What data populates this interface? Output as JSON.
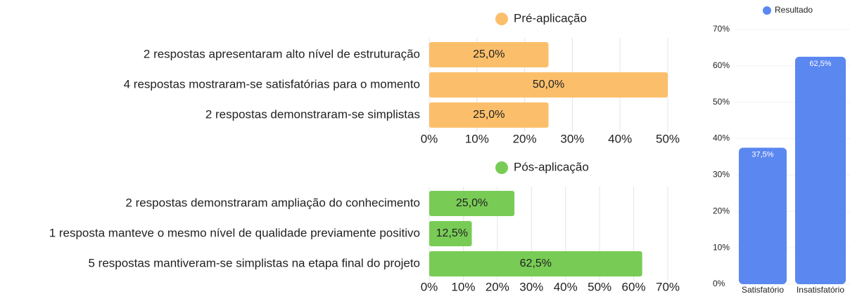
{
  "chart_data": [
    {
      "type": "hbar",
      "categories": [
        "2 respostas apresentaram alto nível de estruturação",
        "4 respostas mostraram-se satisfatórias para o momento",
        "2 respostas demonstraram-se simplistas"
      ],
      "series": [
        {
          "name": "Pré-aplicação",
          "color": "#fbbf6b",
          "values": [
            25,
            50,
            25
          ],
          "value_labels": [
            "25,0%",
            "50,0%",
            "25,0%"
          ]
        }
      ],
      "xlim": [
        0,
        50
      ],
      "xticks": [
        {
          "value": 0,
          "label": "0%"
        },
        {
          "value": 10,
          "label": "10%"
        },
        {
          "value": 20,
          "label": "20%"
        },
        {
          "value": 30,
          "label": "30%"
        },
        {
          "value": 40,
          "label": "40%"
        },
        {
          "value": 50,
          "label": "50%"
        }
      ],
      "grid": true
    },
    {
      "type": "hbar",
      "categories": [
        "2 respostas demonstraram ampliação do conhecimento",
        "1 resposta manteve o mesmo nível de qualidade previamente positivo",
        "5 respostas mantiveram-se simplistas na etapa final do projeto"
      ],
      "series": [
        {
          "name": "Pós-aplicação",
          "color": "#78cc55",
          "values": [
            25,
            12.5,
            62.5
          ],
          "value_labels": [
            "25,0%",
            "12,5%",
            "62,5%"
          ]
        }
      ],
      "xlim": [
        0,
        70
      ],
      "xticks": [
        {
          "value": 0,
          "label": "0%"
        },
        {
          "value": 10,
          "label": "10%"
        },
        {
          "value": 20,
          "label": "20%"
        },
        {
          "value": 30,
          "label": "30%"
        },
        {
          "value": 40,
          "label": "40%"
        },
        {
          "value": 50,
          "label": "50%"
        },
        {
          "value": 60,
          "label": "60%"
        },
        {
          "value": 70,
          "label": "70%"
        }
      ],
      "grid": true
    },
    {
      "type": "bar",
      "categories": [
        "Satisfatório",
        "Insatisfatório"
      ],
      "series": [
        {
          "name": "Resultado",
          "color": "#5b87f0",
          "values": [
            37.5,
            62.5
          ],
          "value_labels": [
            "37,5%",
            "62,5%"
          ]
        }
      ],
      "ylim": [
        0,
        70
      ],
      "yticks": [
        {
          "value": 0,
          "label": "0%"
        },
        {
          "value": 10,
          "label": "10%"
        },
        {
          "value": 20,
          "label": "20%"
        },
        {
          "value": 30,
          "label": "30%"
        },
        {
          "value": 40,
          "label": "40%"
        },
        {
          "value": 50,
          "label": "50%"
        },
        {
          "value": 60,
          "label": "60%"
        },
        {
          "value": 70,
          "label": "70%"
        }
      ],
      "grid": true
    }
  ]
}
